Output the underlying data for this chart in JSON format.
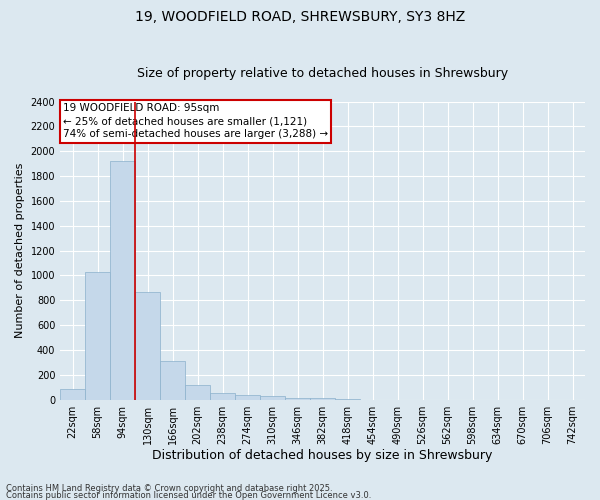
{
  "title": "19, WOODFIELD ROAD, SHREWSBURY, SY3 8HZ",
  "subtitle": "Size of property relative to detached houses in Shrewsbury",
  "xlabel": "Distribution of detached houses by size in Shrewsbury",
  "ylabel": "Number of detached properties",
  "footer1": "Contains HM Land Registry data © Crown copyright and database right 2025.",
  "footer2": "Contains public sector information licensed under the Open Government Licence v3.0.",
  "categories": [
    "22sqm",
    "58sqm",
    "94sqm",
    "130sqm",
    "166sqm",
    "202sqm",
    "238sqm",
    "274sqm",
    "310sqm",
    "346sqm",
    "382sqm",
    "418sqm",
    "454sqm",
    "490sqm",
    "526sqm",
    "562sqm",
    "598sqm",
    "634sqm",
    "670sqm",
    "706sqm",
    "742sqm"
  ],
  "values": [
    90,
    1030,
    1920,
    870,
    310,
    120,
    55,
    40,
    30,
    15,
    10,
    5,
    0,
    0,
    0,
    0,
    0,
    0,
    0,
    0,
    0
  ],
  "bar_color": "#c5d8ea",
  "bar_edge_color": "#8ab0cc",
  "vline_index": 2,
  "vline_color": "#cc0000",
  "annotation_text": "19 WOODFIELD ROAD: 95sqm\n← 25% of detached houses are smaller (1,121)\n74% of semi-detached houses are larger (3,288) →",
  "annotation_box_color": "#cc0000",
  "ylim": [
    0,
    2400
  ],
  "yticks": [
    0,
    200,
    400,
    600,
    800,
    1000,
    1200,
    1400,
    1600,
    1800,
    2000,
    2200,
    2400
  ],
  "background_color": "#dce8f0",
  "plot_background_color": "#dce8f0",
  "grid_color": "#ffffff",
  "title_fontsize": 10,
  "subtitle_fontsize": 9,
  "xlabel_fontsize": 9,
  "ylabel_fontsize": 8,
  "tick_fontsize": 7,
  "footer_fontsize": 6,
  "annotation_fontsize": 7.5
}
